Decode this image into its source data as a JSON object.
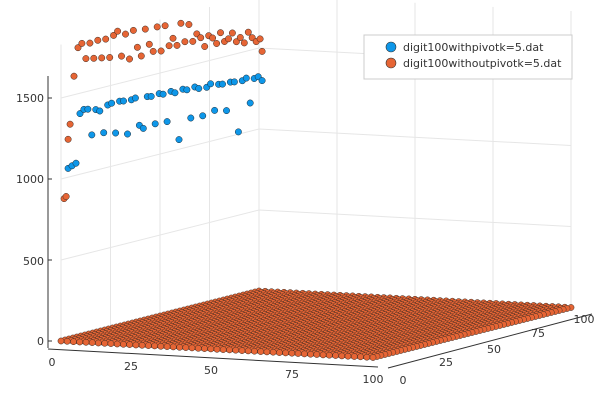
{
  "chart_data": {
    "type": "scatter",
    "title": "",
    "xlabel": "",
    "ylabel": "",
    "grid": true,
    "legend_position": "top-right",
    "x_ticks": [
      "0",
      "25",
      "50",
      "75",
      "100"
    ],
    "y_ticks": [
      "0",
      "25",
      "50",
      "75",
      "100"
    ],
    "z_ticks": [
      "0",
      "500",
      "1000",
      "1500"
    ],
    "xlim": [
      0,
      100
    ],
    "ylim": [
      0,
      100
    ],
    "zlim": [
      0,
      1850
    ],
    "series": [
      {
        "name": "digit100withpivotk=5.dat",
        "color": "#0e97e9",
        "description_of_shape": "dense grid of points at z≈0 over x,y in 0..100; plus a sparse band of outliers near x≈0, y 5..100 with z≈1000..1420"
      },
      {
        "name": "digit100withoutpivotk=5.dat",
        "color": "#e66535",
        "description_of_shape": "dense grid of points at z≈0 over x,y in 0..100 (drawn on top); plus sparse outliers near x≈0 with z≈880..1830"
      }
    ],
    "outliers_with": [
      [
        2,
        1060
      ],
      [
        4,
        1070
      ],
      [
        6,
        1080
      ],
      [
        8,
        1380
      ],
      [
        10,
        1400
      ],
      [
        12,
        1395
      ],
      [
        14,
        1230
      ],
      [
        16,
        1380
      ],
      [
        18,
        1365
      ],
      [
        20,
        1225
      ],
      [
        22,
        1390
      ],
      [
        24,
        1395
      ],
      [
        26,
        1205
      ],
      [
        28,
        1395
      ],
      [
        30,
        1390
      ],
      [
        32,
        1180
      ],
      [
        34,
        1385
      ],
      [
        36,
        1390
      ],
      [
        38,
        1215
      ],
      [
        40,
        1190
      ],
      [
        42,
        1380
      ],
      [
        44,
        1375
      ],
      [
        46,
        1200
      ],
      [
        48,
        1380
      ],
      [
        50,
        1370
      ],
      [
        52,
        1195
      ],
      [
        54,
        1375
      ],
      [
        56,
        1360
      ],
      [
        58,
        1065
      ],
      [
        60,
        1370
      ],
      [
        62,
        1360
      ],
      [
        64,
        1180
      ],
      [
        66,
        1365
      ],
      [
        68,
        1350
      ],
      [
        70,
        1175
      ],
      [
        72,
        1345
      ],
      [
        74,
        1360
      ],
      [
        76,
        1190
      ],
      [
        78,
        1345
      ],
      [
        80,
        1340
      ],
      [
        82,
        1170
      ],
      [
        84,
        1340
      ],
      [
        86,
        1335
      ],
      [
        88,
        1020
      ],
      [
        90,
        1330
      ],
      [
        92,
        1340
      ],
      [
        94,
        1180
      ],
      [
        96,
        1325
      ],
      [
        98,
        1330
      ],
      [
        100,
        1300
      ]
    ],
    "outliers_without": [
      [
        0,
        880
      ],
      [
        1,
        890
      ],
      [
        2,
        1240
      ],
      [
        3,
        1330
      ],
      [
        5,
        1620
      ],
      [
        7,
        1790
      ],
      [
        9,
        1810
      ],
      [
        11,
        1710
      ],
      [
        13,
        1800
      ],
      [
        15,
        1700
      ],
      [
        17,
        1805
      ],
      [
        19,
        1690
      ],
      [
        21,
        1800
      ],
      [
        23,
        1680
      ],
      [
        25,
        1810
      ],
      [
        27,
        1830
      ],
      [
        29,
        1670
      ],
      [
        31,
        1800
      ],
      [
        33,
        1640
      ],
      [
        35,
        1810
      ],
      [
        37,
        1700
      ],
      [
        39,
        1640
      ],
      [
        41,
        1800
      ],
      [
        43,
        1700
      ],
      [
        45,
        1650
      ],
      [
        47,
        1795
      ],
      [
        49,
        1640
      ],
      [
        51,
        1790
      ],
      [
        53,
        1660
      ],
      [
        55,
        1700
      ],
      [
        57,
        1650
      ],
      [
        59,
        1780
      ],
      [
        61,
        1660
      ],
      [
        63,
        1760
      ],
      [
        65,
        1650
      ],
      [
        67,
        1690
      ],
      [
        69,
        1660
      ],
      [
        71,
        1600
      ],
      [
        73,
        1660
      ],
      [
        75,
        1640
      ],
      [
        77,
        1600
      ],
      [
        79,
        1660
      ],
      [
        81,
        1600
      ],
      [
        83,
        1610
      ],
      [
        85,
        1640
      ],
      [
        87,
        1580
      ],
      [
        89,
        1600
      ],
      [
        91,
        1560
      ],
      [
        93,
        1620
      ],
      [
        95,
        1580
      ],
      [
        97,
        1550
      ],
      [
        99,
        1560
      ],
      [
        100,
        1480
      ]
    ]
  }
}
